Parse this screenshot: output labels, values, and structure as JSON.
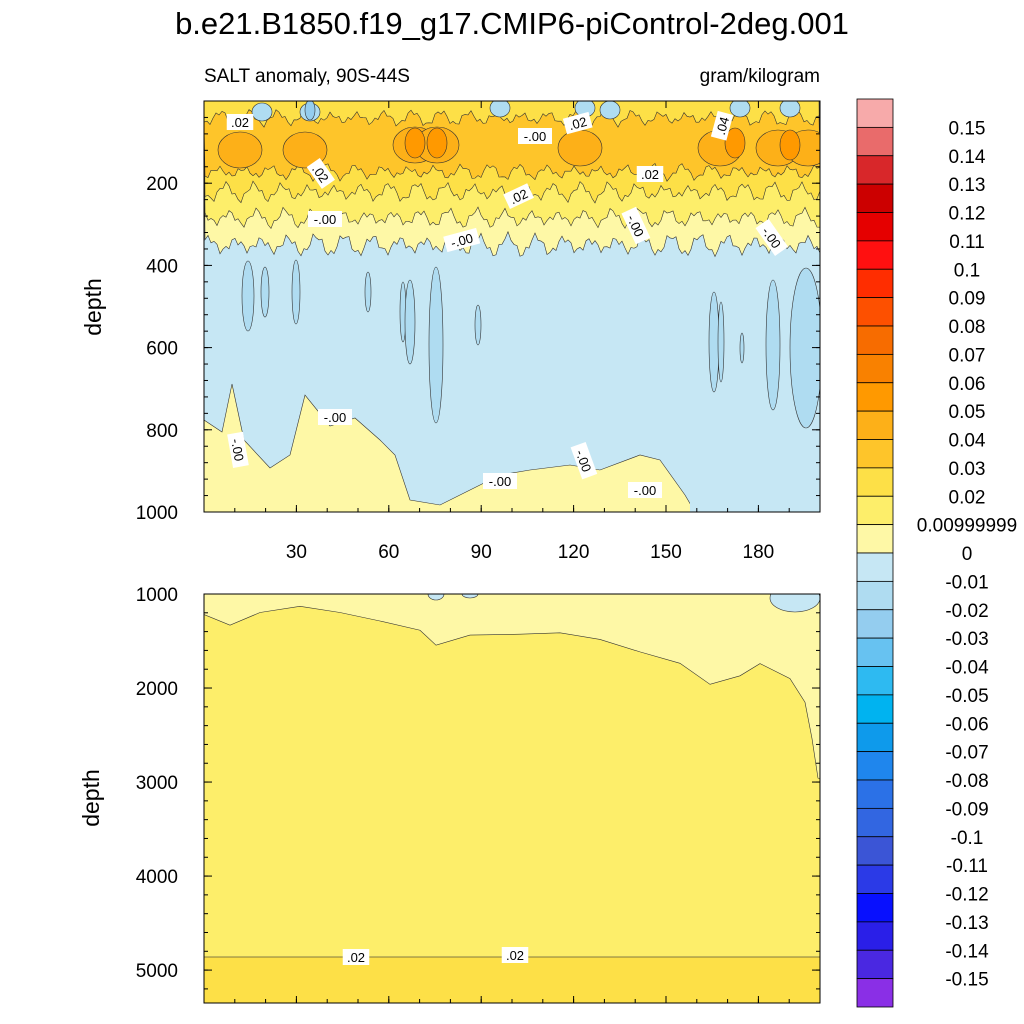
{
  "chart_data": [
    {
      "type": "contour",
      "title": "b.e21.B1850.f19_g17.CMIP6-piControl-2deg.001",
      "left_string": "SALT anomaly, 90S-44S",
      "right_string": "gram/kilogram",
      "xlabel": "",
      "ylabel": "depth",
      "xlim": [
        0,
        200
      ],
      "ylim": [
        1000,
        0
      ],
      "x_ticks": [
        "30",
        "60",
        "90",
        "120",
        "150",
        "180"
      ],
      "y_ticks": [
        "200",
        "400",
        "600",
        "800",
        "1000"
      ],
      "contour_labels": [
        ".02",
        "-.00",
        ".02",
        ".04",
        ".02",
        ".02",
        ".02",
        "-.00",
        "-.00",
        "-.00",
        "-.00",
        "-.00",
        "-.00",
        "-.00",
        "-.00",
        "-.00"
      ]
    },
    {
      "type": "contour",
      "title": "",
      "xlabel": "",
      "ylabel": "depth",
      "xlim": [
        0,
        200
      ],
      "ylim": [
        5350,
        1000
      ],
      "y_ticks": [
        "1000",
        "2000",
        "3000",
        "4000",
        "5000"
      ],
      "contour_labels": [
        ".02",
        ".02"
      ]
    }
  ],
  "colorbar": {
    "labels": [
      "0.15",
      "0.14",
      "0.13",
      "0.12",
      "0.11",
      "0.1",
      "0.09",
      "0.08",
      "0.07",
      "0.06",
      "0.05",
      "0.04",
      "0.03",
      "0.02",
      "0.00999999",
      "0",
      "-0.01",
      "-0.02",
      "-0.03",
      "-0.04",
      "-0.05",
      "-0.06",
      "-0.07",
      "-0.08",
      "-0.09",
      "-0.1",
      "-0.11",
      "-0.12",
      "-0.13",
      "-0.14",
      "-0.15"
    ],
    "colors": [
      "#f7aaaa",
      "#e96b6b",
      "#d8272a",
      "#cc0000",
      "#e50000",
      "#ff1010",
      "#ff2d00",
      "#fd5000",
      "#f76c00",
      "#f98100",
      "#ff9900",
      "#fdb018",
      "#fec52a",
      "#fde047",
      "#fdee6a",
      "#fef8a6",
      "#c6e7f4",
      "#afdcf1",
      "#94cdef",
      "#67c2f1",
      "#2ebaf1",
      "#00b3f0",
      "#0e9aeb",
      "#1f86ed",
      "#2b71e7",
      "#3266e1",
      "#3b55d6",
      "#2b3ae7",
      "#0810fe",
      "#2a1fe8",
      "#4a28e1",
      "#8a2fe6"
    ]
  },
  "fills": {
    "neg1": "#c6e7f4",
    "neg2": "#afdcf1",
    "neg3": "#94cdef",
    "neg4": "#67c2f1",
    "pos0": "#fef8a6",
    "pos1": "#fdee6a",
    "pos2": "#fde047",
    "pos3": "#fec52a",
    "pos4": "#fdb018",
    "pos5": "#ff9900"
  }
}
